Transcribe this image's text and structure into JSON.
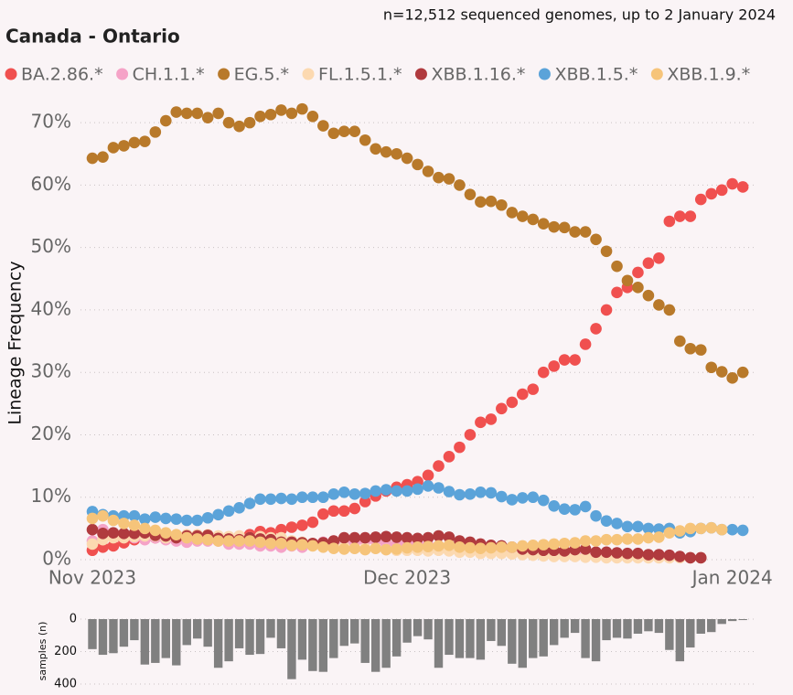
{
  "chart_data": [
    {
      "type": "line",
      "title": "Canada - Ontario",
      "subtitle": "n=12,512 sequenced genomes, up to 2 January 2024",
      "ylabel": "Lineage Frequency",
      "categories": [
        "Nov 2023",
        null,
        null,
        null,
        null,
        null,
        null,
        null,
        null,
        null,
        null,
        null,
        null,
        null,
        null,
        null,
        null,
        null,
        null,
        null,
        null,
        null,
        null,
        null,
        null,
        null,
        null,
        null,
        null,
        null,
        "Dec 2023",
        null,
        null,
        null,
        null,
        null,
        null,
        null,
        null,
        null,
        null,
        null,
        null,
        null,
        null,
        null,
        null,
        null,
        null,
        null,
        null,
        null,
        null,
        null,
        null,
        null,
        null,
        null,
        null,
        null,
        null,
        "Jan 2024",
        null
      ],
      "ylim": [
        0,
        75
      ],
      "yticks": [
        {
          "value": 0,
          "label": "0%"
        },
        {
          "value": 10,
          "label": "10%"
        },
        {
          "value": 20,
          "label": "20%"
        },
        {
          "value": 30,
          "label": "30%"
        },
        {
          "value": 40,
          "label": "40%"
        },
        {
          "value": 50,
          "label": "50%"
        },
        {
          "value": 60,
          "label": "60%"
        },
        {
          "value": 70,
          "label": "70%"
        }
      ],
      "grid": true,
      "legend": "top",
      "series": [
        {
          "name": "BA.2.86.*",
          "color": "#f0504f",
          "values": [
            1.5,
            2,
            2.2,
            2.7,
            3.2,
            3.5,
            3.5,
            3.3,
            3.3,
            3.2,
            3.2,
            3.3,
            3.2,
            3.3,
            3.5,
            4,
            4.5,
            4.3,
            4.8,
            5.2,
            5.5,
            6,
            7.3,
            7.8,
            7.8,
            8.2,
            9.3,
            10.2,
            11,
            11.6,
            12,
            12.5,
            13.5,
            15,
            16.5,
            18,
            20,
            22,
            22.5,
            24.2,
            25.2,
            26.5,
            27.3,
            30,
            31,
            32,
            32,
            34.5,
            37,
            40,
            42.8,
            43.6,
            46,
            47.5,
            48.3,
            54.2,
            55,
            55,
            57.7,
            58.6,
            59.2,
            60.2,
            59.7
          ]
        },
        {
          "name": "CH.1.1.*",
          "color": "#f5a3c7",
          "values": [
            3,
            4.8,
            4,
            3.8,
            3.5,
            3.2,
            3.5,
            3.2,
            3,
            2.8,
            3,
            3,
            3,
            2.5,
            2.5,
            2.5,
            2.2,
            2.2,
            2,
            2.2,
            2,
            2.5,
            2.8,
            3,
            3,
            2.8,
            3,
            3,
            2.6,
            2.4,
            2.8,
            2.5,
            2.3,
            2.2,
            2.2,
            1.8,
            1.5,
            1.6,
            1.4,
            1.2,
            1,
            1.2,
            1.2,
            0.8,
            1,
            1,
            0.9,
            0.8,
            0.7,
            0.7,
            0.6,
            0.5,
            0.6,
            0.5,
            0.5,
            0.7,
            null,
            null,
            null,
            null,
            null,
            null,
            null
          ]
        },
        {
          "name": "EG.5.*",
          "color": "#b8792a",
          "values": [
            64.3,
            64.5,
            66,
            66.3,
            66.8,
            67,
            68.5,
            70.3,
            71.7,
            71.5,
            71.5,
            70.8,
            71.5,
            70,
            69.4,
            70,
            71,
            71.3,
            72,
            71.5,
            72.2,
            71,
            69.5,
            68.3,
            68.6,
            68.6,
            67.2,
            65.8,
            65.3,
            65,
            64.3,
            63.3,
            62.2,
            61.2,
            61,
            60,
            58.5,
            57.3,
            57.4,
            56.8,
            55.6,
            55,
            54.5,
            53.8,
            53.3,
            53.2,
            52.5,
            52.5,
            51.3,
            49.4,
            47,
            44.7,
            43.6,
            42.3,
            40.8,
            40,
            35,
            33.8,
            33.6,
            30.8,
            30.1,
            29.1,
            30
          ]
        },
        {
          "name": "FL.1.5.1.*",
          "color": "#fcd9b0",
          "values": [
            2.5,
            3.2,
            3.5,
            3.5,
            3.7,
            3.8,
            3.8,
            3.5,
            3.8,
            4,
            4,
            4,
            3.8,
            3.7,
            3.8,
            3.5,
            3.7,
            3.5,
            3.5,
            3,
            2.8,
            2.5,
            2.3,
            2.2,
            2,
            1.8,
            1.8,
            1.8,
            1.6,
            1.5,
            1.5,
            1.5,
            1.4,
            1.5,
            1.4,
            1.2,
            1.2,
            1,
            1,
            1,
            0.9,
            0.8,
            0.7,
            0.6,
            0.5,
            0.5,
            0.5,
            0.4,
            0.4,
            0.3,
            0.3,
            0.3,
            0.3,
            0.3,
            0.3,
            0.3,
            0.3,
            0.3,
            0.3,
            null,
            null,
            null,
            null
          ]
        },
        {
          "name": "XBB.1.16.*",
          "color": "#b03a3e",
          "values": [
            4.8,
            4.2,
            4.3,
            4.2,
            4.2,
            4.3,
            3.9,
            3.8,
            3.5,
            3.8,
            3.8,
            3.9,
            3.4,
            3.3,
            3.2,
            3.5,
            3.3,
            3.2,
            2.8,
            2.8,
            2.7,
            2.6,
            2.7,
            3,
            3.5,
            3.5,
            3.5,
            3.6,
            3.7,
            3.6,
            3.5,
            3.4,
            3.5,
            3.8,
            3.6,
            3,
            2.8,
            2.5,
            2.3,
            2.2,
            2,
            1.7,
            1.6,
            1.5,
            1.5,
            1.4,
            1.6,
            1.7,
            1.2,
            1.2,
            1.1,
            1,
            1,
            0.8,
            0.8,
            0.7,
            0.5,
            0.3,
            0.3,
            null,
            null,
            null,
            null
          ]
        },
        {
          "name": "XBB.1.5.*",
          "color": "#5ba3d9",
          "values": [
            7.7,
            7.2,
            7,
            7,
            7,
            6.5,
            6.8,
            6.6,
            6.5,
            6.3,
            6.3,
            6.7,
            7.2,
            7.8,
            8.3,
            9,
            9.7,
            9.7,
            9.8,
            9.7,
            10,
            10,
            10,
            10.5,
            10.8,
            10.5,
            10.6,
            11,
            11.2,
            11,
            11,
            11.3,
            11.8,
            11.5,
            10.9,
            10.4,
            10.5,
            10.8,
            10.7,
            10.1,
            9.6,
            9.9,
            10,
            9.5,
            8.6,
            8.1,
            8,
            8.5,
            7,
            6.2,
            5.8,
            5.3,
            5.3,
            5,
            4.9,
            5,
            4.3,
            4.5,
            5,
            5.1,
            4.8,
            4.8,
            4.7
          ]
        },
        {
          "name": "XBB.1.9.*",
          "color": "#f6c47a",
          "values": [
            6.6,
            7,
            6.3,
            5.8,
            5.5,
            5,
            4.7,
            4.3,
            4,
            3.5,
            3.3,
            3.2,
            3,
            3,
            3,
            3,
            2.8,
            2.6,
            2.6,
            2.3,
            2.4,
            2.2,
            2,
            1.8,
            1.7,
            1.8,
            1.6,
            1.8,
            1.6,
            1.7,
            1.9,
            2,
            2.1,
            2.2,
            2.3,
            2,
            1.9,
            1.8,
            1.9,
            2,
            2,
            2.2,
            2.3,
            2.4,
            2.5,
            2.6,
            2.7,
            3,
            3,
            3.2,
            3.2,
            3.3,
            3.3,
            3.5,
            3.6,
            4.3,
            4.6,
            5,
            5,
            5.1,
            4.8,
            null,
            null
          ]
        }
      ]
    },
    {
      "type": "bar",
      "ylabel": "samples (n)",
      "color": "#808080",
      "ylim": [
        0,
        400
      ],
      "yticks": [
        0,
        200,
        400
      ],
      "grid": true,
      "values": [
        185,
        220,
        210,
        170,
        130,
        280,
        270,
        240,
        285,
        160,
        120,
        170,
        300,
        260,
        180,
        220,
        215,
        115,
        180,
        370,
        250,
        320,
        325,
        240,
        165,
        150,
        270,
        325,
        300,
        230,
        145,
        105,
        125,
        300,
        220,
        240,
        240,
        250,
        135,
        165,
        275,
        300,
        240,
        230,
        160,
        115,
        85,
        240,
        260,
        130,
        115,
        120,
        90,
        75,
        85,
        190,
        260,
        175,
        90,
        80,
        30,
        12,
        6
      ]
    }
  ]
}
